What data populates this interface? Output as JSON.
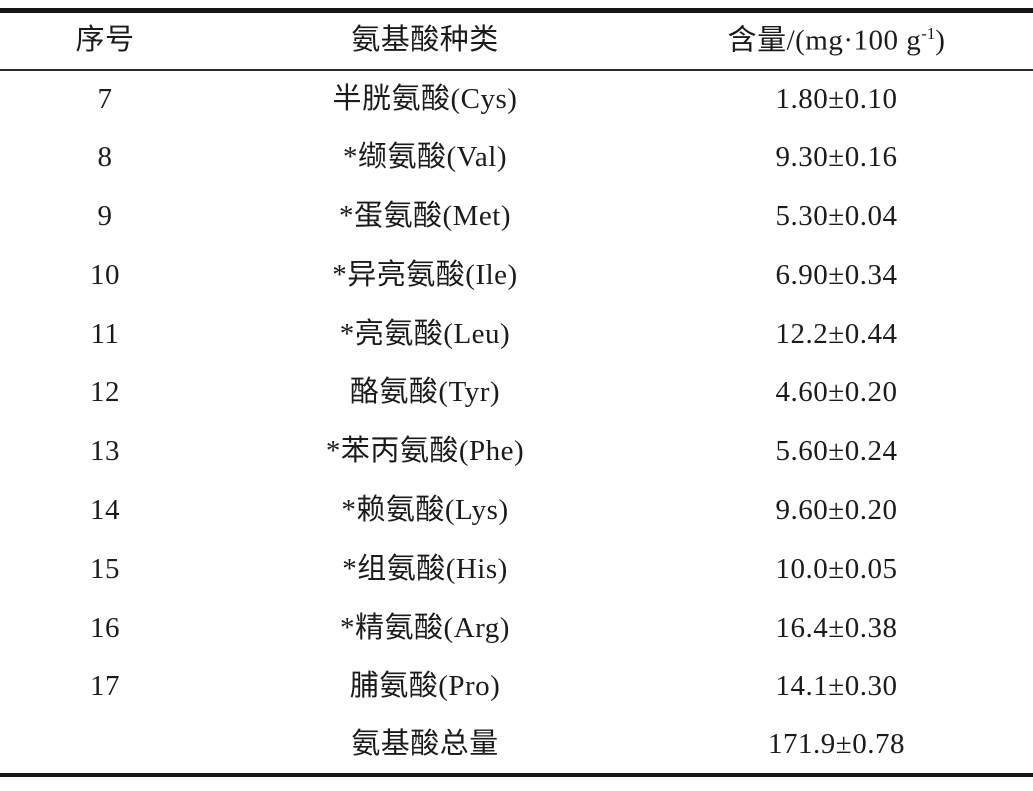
{
  "table": {
    "title_semantic": "amino-acid-content-table",
    "columns": [
      {
        "label": "序号"
      },
      {
        "label": "氨基酸种类"
      },
      {
        "label_prefix": "含量/(mg·100 g",
        "label_sup": "-1",
        "label_suffix": ")"
      }
    ],
    "rows": [
      {
        "no": "7",
        "name": "半胱氨酸(Cys)",
        "value": "1.80±0.10"
      },
      {
        "no": "8",
        "name": "*缬氨酸(Val)",
        "value": "9.30±0.16"
      },
      {
        "no": "9",
        "name": "*蛋氨酸(Met)",
        "value": "5.30±0.04"
      },
      {
        "no": "10",
        "name": "*异亮氨酸(Ile)",
        "value": "6.90±0.34"
      },
      {
        "no": "11",
        "name": "*亮氨酸(Leu)",
        "value": "12.2±0.44"
      },
      {
        "no": "12",
        "name": "酪氨酸(Tyr)",
        "value": "4.60±0.20"
      },
      {
        "no": "13",
        "name": "*苯丙氨酸(Phe)",
        "value": "5.60±0.24"
      },
      {
        "no": "14",
        "name": "*赖氨酸(Lys)",
        "value": "9.60±0.20"
      },
      {
        "no": "15",
        "name": "*组氨酸(His)",
        "value": "10.0±0.05"
      },
      {
        "no": "16",
        "name": "*精氨酸(Arg)",
        "value": "16.4±0.38"
      },
      {
        "no": "17",
        "name": "脯氨酸(Pro)",
        "value": "14.1±0.30"
      },
      {
        "no": "",
        "name": "氨基酸总量",
        "value": "171.9±0.78"
      }
    ]
  },
  "chart_data": {
    "type": "table",
    "columns": [
      "序号",
      "氨基酸种类",
      "含量/(mg·100 g-1)"
    ],
    "rows": [
      [
        "7",
        "半胱氨酸(Cys)",
        "1.80±0.10"
      ],
      [
        "8",
        "*缬氨酸(Val)",
        "9.30±0.16"
      ],
      [
        "9",
        "*蛋氨酸(Met)",
        "5.30±0.04"
      ],
      [
        "10",
        "*异亮氨酸(Ile)",
        "6.90±0.34"
      ],
      [
        "11",
        "*亮氨酸(Leu)",
        "12.2±0.44"
      ],
      [
        "12",
        "酪氨酸(Tyr)",
        "4.60±0.20"
      ],
      [
        "13",
        "*苯丙氨酸(Phe)",
        "5.60±0.24"
      ],
      [
        "14",
        "*赖氨酸(Lys)",
        "9.60±0.20"
      ],
      [
        "15",
        "*组氨酸(His)",
        "10.0±0.05"
      ],
      [
        "16",
        "*精氨酸(Arg)",
        "16.4±0.38"
      ],
      [
        "17",
        "脯氨酸(Pro)",
        "14.1±0.30"
      ],
      [
        "",
        "氨基酸总量",
        "171.9±0.78"
      ]
    ]
  }
}
